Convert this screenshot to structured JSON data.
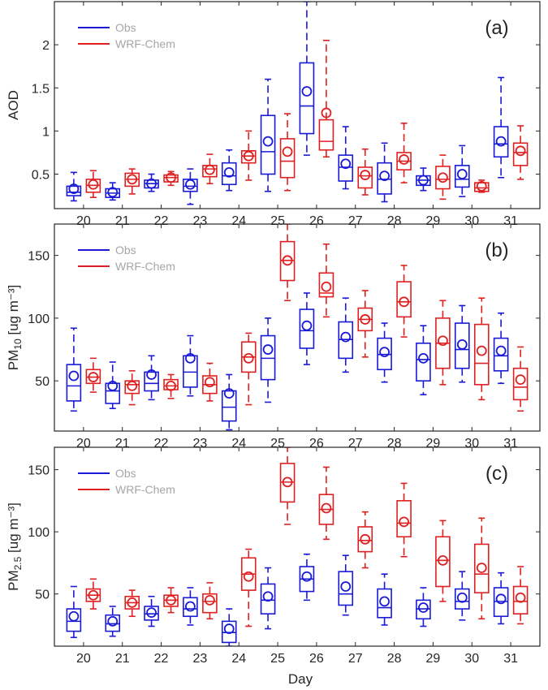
{
  "figure": {
    "xlabel": "Day",
    "obs_color": "#1a1ad6",
    "model_color": "#e02020",
    "legend_text_color": "#a6a6a6"
  },
  "chart_data": [
    {
      "type": "box",
      "panel_label": "(a)",
      "ylabel": "AOD",
      "ylabel_sub": "",
      "ylabel_unit": "",
      "ylim": [
        0.1,
        2.5
      ],
      "yticks": [
        0.5,
        1,
        1.5,
        2
      ],
      "ytick_labels": [
        "0.5",
        "1",
        "1.5",
        "2"
      ],
      "categories": [
        "20",
        "21",
        "22",
        "23",
        "24",
        "25",
        "26",
        "27",
        "28",
        "29",
        "30",
        "31"
      ],
      "legend": {
        "position": "top-left",
        "entries": [
          "Obs",
          "WRF-Chem"
        ]
      },
      "series": [
        {
          "name": "Obs",
          "boxes": [
            {
              "whislo": 0.19,
              "q1": 0.25,
              "med": 0.29,
              "q3": 0.36,
              "whishi": 0.52,
              "mean": 0.33
            },
            {
              "whislo": 0.2,
              "q1": 0.23,
              "med": 0.28,
              "q3": 0.33,
              "whishi": 0.4,
              "mean": 0.29
            },
            {
              "whislo": 0.3,
              "q1": 0.34,
              "med": 0.39,
              "q3": 0.43,
              "whishi": 0.5,
              "mean": 0.39
            },
            {
              "whislo": 0.15,
              "q1": 0.3,
              "med": 0.36,
              "q3": 0.44,
              "whishi": 0.56,
              "mean": 0.38
            },
            {
              "whislo": 0.31,
              "q1": 0.38,
              "med": 0.48,
              "q3": 0.63,
              "whishi": 0.78,
              "mean": 0.52
            },
            {
              "whislo": 0.3,
              "q1": 0.5,
              "med": 0.76,
              "q3": 1.18,
              "whishi": 1.6,
              "mean": 0.88
            },
            {
              "whislo": 0.72,
              "q1": 0.97,
              "med": 1.29,
              "q3": 1.79,
              "whishi": 2.5,
              "mean": 1.46
            },
            {
              "whislo": 0.33,
              "q1": 0.42,
              "med": 0.58,
              "q3": 0.72,
              "whishi": 1.05,
              "mean": 0.62
            },
            {
              "whislo": 0.18,
              "q1": 0.27,
              "med": 0.44,
              "q3": 0.63,
              "whishi": 0.86,
              "mean": 0.48
            },
            {
              "whislo": 0.31,
              "q1": 0.37,
              "med": 0.43,
              "q3": 0.48,
              "whishi": 0.57,
              "mean": 0.43
            },
            {
              "whislo": 0.24,
              "q1": 0.35,
              "med": 0.44,
              "q3": 0.6,
              "whishi": 0.83,
              "mean": 0.5
            },
            {
              "whislo": 0.46,
              "q1": 0.7,
              "med": 0.85,
              "q3": 1.05,
              "whishi": 1.62,
              "mean": 0.88
            }
          ]
        },
        {
          "name": "WRF-Chem",
          "boxes": [
            {
              "whislo": 0.23,
              "q1": 0.29,
              "med": 0.37,
              "q3": 0.44,
              "whishi": 0.54,
              "mean": 0.38
            },
            {
              "whislo": 0.27,
              "q1": 0.36,
              "med": 0.44,
              "q3": 0.51,
              "whishi": 0.56,
              "mean": 0.44
            },
            {
              "whislo": 0.37,
              "q1": 0.41,
              "med": 0.46,
              "q3": 0.49,
              "whishi": 0.53,
              "mean": 0.46
            },
            {
              "whislo": 0.39,
              "q1": 0.47,
              "med": 0.56,
              "q3": 0.6,
              "whishi": 0.73,
              "mean": 0.55
            },
            {
              "whislo": 0.43,
              "q1": 0.63,
              "med": 0.71,
              "q3": 0.77,
              "whishi": 1.0,
              "mean": 0.71
            },
            {
              "whislo": 0.31,
              "q1": 0.46,
              "med": 0.65,
              "q3": 0.91,
              "whishi": 1.2,
              "mean": 0.76
            },
            {
              "whislo": 0.7,
              "q1": 0.78,
              "med": 0.88,
              "q3": 1.13,
              "whishi": 2.05,
              "mean": 1.21
            },
            {
              "whislo": 0.26,
              "q1": 0.34,
              "med": 0.48,
              "q3": 0.58,
              "whishi": 0.79,
              "mean": 0.49
            },
            {
              "whislo": 0.4,
              "q1": 0.55,
              "med": 0.65,
              "q3": 0.75,
              "whishi": 1.09,
              "mean": 0.67
            },
            {
              "whislo": 0.21,
              "q1": 0.33,
              "med": 0.44,
              "q3": 0.59,
              "whishi": 0.72,
              "mean": 0.46
            },
            {
              "whislo": 0.29,
              "q1": 0.3,
              "med": 0.34,
              "q3": 0.4,
              "whishi": 0.43,
              "mean": 0.36
            },
            {
              "whislo": 0.44,
              "q1": 0.6,
              "med": 0.75,
              "q3": 0.86,
              "whishi": 1.06,
              "mean": 0.77
            }
          ]
        }
      ]
    },
    {
      "type": "box",
      "panel_label": "(b)",
      "ylabel": "PM",
      "ylabel_sub": "10",
      "ylabel_unit": " [ug m⁻³]",
      "ylim": [
        10,
        175
      ],
      "yticks": [
        50,
        100,
        150
      ],
      "ytick_labels": [
        "50",
        "100",
        "150"
      ],
      "categories": [
        "20",
        "21",
        "22",
        "23",
        "24",
        "25",
        "26",
        "27",
        "28",
        "29",
        "30",
        "31"
      ],
      "legend": {
        "position": "top-left",
        "entries": [
          "Obs",
          "WRF-Chem"
        ]
      },
      "series": [
        {
          "name": "Obs",
          "boxes": [
            {
              "whislo": 26,
              "q1": 34,
              "med": 46,
              "q3": 63,
              "whishi": 92,
              "mean": 54
            },
            {
              "whislo": 28,
              "q1": 32,
              "med": 42,
              "q3": 48,
              "whishi": 65,
              "mean": 46
            },
            {
              "whislo": 35,
              "q1": 42,
              "med": 48,
              "q3": 57,
              "whishi": 70,
              "mean": 55
            },
            {
              "whislo": 38,
              "q1": 45,
              "med": 57,
              "q3": 70,
              "whishi": 86,
              "mean": 68
            },
            {
              "whislo": 11,
              "q1": 18,
              "med": 29,
              "q3": 42,
              "whishi": 55,
              "mean": 40
            },
            {
              "whislo": 33,
              "q1": 51,
              "med": 68,
              "q3": 86,
              "whishi": 100,
              "mean": 75
            },
            {
              "whislo": 63,
              "q1": 76,
              "med": 90,
              "q3": 107,
              "whishi": 120,
              "mean": 94
            },
            {
              "whislo": 57,
              "q1": 68,
              "med": 83,
              "q3": 97,
              "whishi": 116,
              "mean": 85
            },
            {
              "whislo": 49,
              "q1": 59,
              "med": 71,
              "q3": 84,
              "whishi": 96,
              "mean": 73
            },
            {
              "whislo": 39,
              "q1": 50,
              "med": 67,
              "q3": 80,
              "whishi": 94,
              "mean": 68
            },
            {
              "whislo": 49,
              "q1": 60,
              "med": 75,
              "q3": 96,
              "whishi": 110,
              "mean": 79
            },
            {
              "whislo": 48,
              "q1": 58,
              "med": 70,
              "q3": 84,
              "whishi": 104,
              "mean": 74
            }
          ]
        },
        {
          "name": "WRF-Chem",
          "boxes": [
            {
              "whislo": 41,
              "q1": 48,
              "med": 53,
              "q3": 59,
              "whishi": 68,
              "mean": 53
            },
            {
              "whislo": 31,
              "q1": 40,
              "med": 47,
              "q3": 50,
              "whishi": 58,
              "mean": 46
            },
            {
              "whislo": 36,
              "q1": 43,
              "med": 46,
              "q3": 51,
              "whishi": 55,
              "mean": 46
            },
            {
              "whislo": 34,
              "q1": 40,
              "med": 47,
              "q3": 54,
              "whishi": 64,
              "mean": 49
            },
            {
              "whislo": 31,
              "q1": 57,
              "med": 69,
              "q3": 81,
              "whishi": 88,
              "mean": 68
            },
            {
              "whislo": 114,
              "q1": 130,
              "med": 146,
              "q3": 161,
              "whishi": 175,
              "mean": 146
            },
            {
              "whislo": 101,
              "q1": 117,
              "med": 120,
              "q3": 136,
              "whishi": 159,
              "mean": 125
            },
            {
              "whislo": 69,
              "q1": 90,
              "med": 99,
              "q3": 108,
              "whishi": 122,
              "mean": 99
            },
            {
              "whislo": 85,
              "q1": 101,
              "med": 113,
              "q3": 129,
              "whishi": 142,
              "mean": 113
            },
            {
              "whislo": 47,
              "q1": 60,
              "med": 80,
              "q3": 100,
              "whishi": 114,
              "mean": 82
            },
            {
              "whislo": 35,
              "q1": 47,
              "med": 64,
              "q3": 95,
              "whishi": 116,
              "mean": 74
            },
            {
              "whislo": 26,
              "q1": 35,
              "med": 45,
              "q3": 60,
              "whishi": 77,
              "mean": 51
            }
          ]
        }
      ]
    },
    {
      "type": "box",
      "panel_label": "(c)",
      "ylabel": "PM",
      "ylabel_sub": "2.5",
      "ylabel_unit": " [ug m⁻³]",
      "ylim": [
        8,
        168
      ],
      "yticks": [
        50,
        100,
        150
      ],
      "ytick_labels": [
        "50",
        "100",
        "150"
      ],
      "categories": [
        "20",
        "21",
        "22",
        "23",
        "24",
        "25",
        "26",
        "27",
        "28",
        "29",
        "30",
        "31"
      ],
      "legend": {
        "position": "top-left",
        "entries": [
          "Obs",
          "WRF-Chem"
        ]
      },
      "series": [
        {
          "name": "Obs",
          "boxes": [
            {
              "whislo": 15,
              "q1": 20,
              "med": 28,
              "q3": 38,
              "whishi": 56,
              "mean": 32
            },
            {
              "whislo": 16,
              "q1": 20,
              "med": 26,
              "q3": 33,
              "whishi": 40,
              "mean": 28
            },
            {
              "whislo": 24,
              "q1": 29,
              "med": 34,
              "q3": 40,
              "whishi": 48,
              "mean": 35
            },
            {
              "whislo": 25,
              "q1": 32,
              "med": 38,
              "q3": 47,
              "whishi": 55,
              "mean": 40
            },
            {
              "whislo": 8,
              "q1": 11,
              "med": 19,
              "q3": 28,
              "whishi": 38,
              "mean": 22
            },
            {
              "whislo": 22,
              "q1": 34,
              "med": 45,
              "q3": 58,
              "whishi": 71,
              "mean": 48
            },
            {
              "whislo": 45,
              "q1": 52,
              "med": 62,
              "q3": 72,
              "whishi": 82,
              "mean": 64
            },
            {
              "whislo": 33,
              "q1": 41,
              "med": 50,
              "q3": 68,
              "whishi": 81,
              "mean": 56
            },
            {
              "whislo": 25,
              "q1": 31,
              "med": 39,
              "q3": 54,
              "whishi": 66,
              "mean": 44
            },
            {
              "whislo": 24,
              "q1": 30,
              "med": 38,
              "q3": 45,
              "whishi": 55,
              "mean": 39
            },
            {
              "whislo": 29,
              "q1": 38,
              "med": 44,
              "q3": 54,
              "whishi": 68,
              "mean": 47
            },
            {
              "whislo": 26,
              "q1": 32,
              "med": 44,
              "q3": 55,
              "whishi": 67,
              "mean": 46
            }
          ]
        },
        {
          "name": "WRF-Chem",
          "boxes": [
            {
              "whislo": 38,
              "q1": 44,
              "med": 49,
              "q3": 54,
              "whishi": 62,
              "mean": 49
            },
            {
              "whislo": 32,
              "q1": 38,
              "med": 43,
              "q3": 48,
              "whishi": 53,
              "mean": 43
            },
            {
              "whislo": 35,
              "q1": 40,
              "med": 45,
              "q3": 49,
              "whishi": 55,
              "mean": 45
            },
            {
              "whislo": 30,
              "q1": 35,
              "med": 44,
              "q3": 50,
              "whishi": 59,
              "mean": 45
            },
            {
              "whislo": 24,
              "q1": 53,
              "med": 66,
              "q3": 79,
              "whishi": 86,
              "mean": 64
            },
            {
              "whislo": 106,
              "q1": 124,
              "med": 140,
              "q3": 155,
              "whishi": 168,
              "mean": 140
            },
            {
              "whislo": 94,
              "q1": 106,
              "med": 118,
              "q3": 130,
              "whishi": 152,
              "mean": 119
            },
            {
              "whislo": 71,
              "q1": 84,
              "med": 93,
              "q3": 104,
              "whishi": 116,
              "mean": 94
            },
            {
              "whislo": 80,
              "q1": 96,
              "med": 107,
              "q3": 125,
              "whishi": 139,
              "mean": 108
            },
            {
              "whislo": 44,
              "q1": 56,
              "med": 77,
              "q3": 96,
              "whishi": 109,
              "mean": 77
            },
            {
              "whislo": 30,
              "q1": 51,
              "med": 66,
              "q3": 90,
              "whishi": 111,
              "mean": 71
            },
            {
              "whislo": 26,
              "q1": 34,
              "med": 44,
              "q3": 56,
              "whishi": 72,
              "mean": 47
            }
          ]
        }
      ]
    }
  ]
}
